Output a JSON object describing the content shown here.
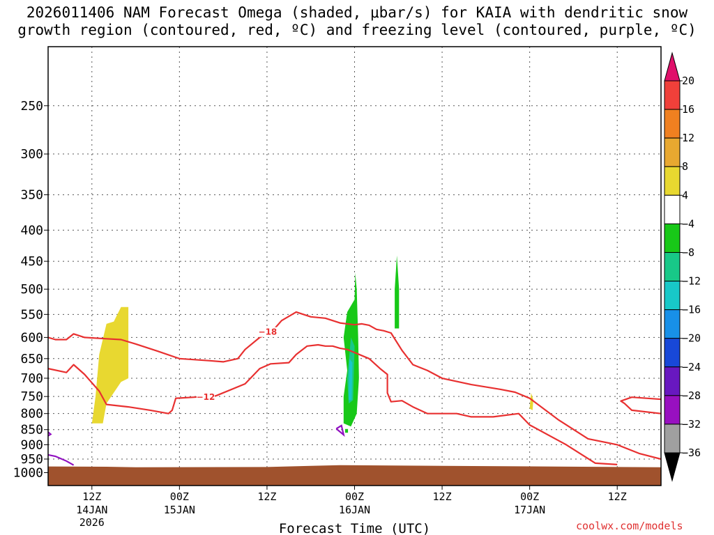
{
  "title": "2026011406 NAM Forecast Omega (shaded, μbar/s) for KAIA with dendritic snow\ngrowth region (contoured, red, ºC) and freezing level (contoured, purple, ºC)",
  "watermark": "coolwx.com/models",
  "chart_data": {
    "type": "heatmap",
    "title": "2026011406 NAM Forecast Omega (shaded, μbar/s) for KAIA with dendritic snow growth region (contoured, red, ºC) and freezing level (contoured, purple, ºC)",
    "xlabel": "Forecast Time (UTC)",
    "ylabel": "",
    "x_unit": "hours since 2026-01-14 06Z",
    "xlim": [
      0,
      84
    ],
    "y_unit": "hPa",
    "ylim": [
      1050,
      200
    ],
    "y_scale": "log",
    "grid": true,
    "yticks": [
      250,
      300,
      350,
      400,
      450,
      500,
      550,
      600,
      650,
      700,
      750,
      800,
      850,
      900,
      950,
      1000
    ],
    "xticks": [
      {
        "x": 6,
        "label": "12Z",
        "date": "14JAN",
        "year": "2026"
      },
      {
        "x": 18,
        "label": "00Z",
        "date": "15JAN",
        "year": ""
      },
      {
        "x": 30,
        "label": "12Z",
        "date": "",
        "year": ""
      },
      {
        "x": 42,
        "label": "00Z",
        "date": "16JAN",
        "year": ""
      },
      {
        "x": 54,
        "label": "12Z",
        "date": "",
        "year": ""
      },
      {
        "x": 66,
        "label": "00Z",
        "date": "17JAN",
        "year": ""
      },
      {
        "x": 78,
        "label": "12Z",
        "date": "",
        "year": ""
      }
    ],
    "colorbar": {
      "levels": [
        "20",
        "16",
        "12",
        "8",
        "4",
        "−4",
        "−8",
        "−12",
        "−16",
        "−20",
        "−24",
        "−28",
        "−32",
        "−36"
      ],
      "colors": [
        "#e0106a",
        "#f0403a",
        "#f08020",
        "#e8a830",
        "#e8d830",
        "#ffffff",
        "#18c818",
        "#18c888",
        "#18c8c8",
        "#1890e8",
        "#1848d8",
        "#6818c0",
        "#9810c0",
        "#a0a0a0",
        "#000000"
      ]
    },
    "omega_regions": [
      {
        "value_range": [
          4,
          8
        ],
        "color": "#e8d830",
        "points": [
          [
            6,
            830
          ],
          [
            6.5,
            750
          ],
          [
            7,
            640
          ],
          [
            8,
            570
          ],
          [
            9,
            565
          ],
          [
            10,
            535
          ],
          [
            11,
            535
          ],
          [
            11,
            700
          ],
          [
            10,
            710
          ],
          [
            8,
            770
          ],
          [
            7.5,
            830
          ]
        ]
      },
      {
        "value_range": [
          -8,
          -4
        ],
        "color": "#18c818",
        "points": [
          [
            40.5,
            830
          ],
          [
            40.5,
            750
          ],
          [
            41,
            680
          ],
          [
            40.5,
            600
          ],
          [
            41,
            545
          ],
          [
            42,
            520
          ],
          [
            42.1,
            470
          ],
          [
            42.3,
            500
          ],
          [
            42.5,
            600
          ],
          [
            42.6,
            700
          ],
          [
            42.3,
            800
          ],
          [
            41.5,
            840
          ]
        ]
      },
      {
        "value_range": [
          -12,
          -8
        ],
        "color": "#18c888",
        "points": [
          [
            41,
            700
          ],
          [
            41.5,
            600
          ],
          [
            42,
            620
          ],
          [
            41.8,
            760
          ],
          [
            41.2,
            770
          ]
        ]
      },
      {
        "value_range": [
          -16,
          -12
        ],
        "color": "#18c8c8",
        "points": [
          [
            41.2,
            760
          ],
          [
            41.3,
            650
          ],
          [
            41.7,
            660
          ],
          [
            41.6,
            760
          ]
        ]
      },
      {
        "value_range": [
          -8,
          -4
        ],
        "color": "#18c818",
        "points": [
          [
            47.5,
            580
          ],
          [
            47.5,
            500
          ],
          [
            47.8,
            440
          ],
          [
            48.1,
            500
          ],
          [
            48.1,
            580
          ]
        ]
      },
      {
        "value_range": [
          4,
          8
        ],
        "color": "#e8d830",
        "points": [
          [
            66,
            785
          ],
          [
            66.2,
            740
          ],
          [
            66.5,
            760
          ],
          [
            66.4,
            790
          ]
        ]
      },
      {
        "value_range": [
          -8,
          -4
        ],
        "color": "#18c818",
        "points": [
          [
            40.7,
            860
          ],
          [
            40.7,
            848
          ],
          [
            41.1,
            848
          ],
          [
            41.1,
            860
          ]
        ]
      }
    ],
    "contours": [
      {
        "name": "-12",
        "color": "#e83030",
        "label_position": [
          21.5,
          752
        ],
        "points": [
          [
            0,
            675
          ],
          [
            2.5,
            685
          ],
          [
            3.5,
            665
          ],
          [
            5,
            690
          ],
          [
            7,
            735
          ],
          [
            8,
            773
          ],
          [
            11,
            780
          ],
          [
            14,
            790
          ],
          [
            16.5,
            800
          ],
          [
            17,
            790
          ],
          [
            17.5,
            755
          ],
          [
            20,
            752
          ],
          [
            23,
            748
          ],
          [
            27,
            715
          ],
          [
            29,
            675
          ],
          [
            30.5,
            663
          ],
          [
            33,
            660
          ],
          [
            34,
            640
          ],
          [
            35.5,
            620
          ],
          [
            37,
            617
          ],
          [
            38,
            620
          ],
          [
            39,
            620
          ],
          [
            40,
            625
          ],
          [
            41,
            628
          ],
          [
            44,
            650
          ],
          [
            45.5,
            675
          ],
          [
            46.5,
            690
          ],
          [
            46.5,
            740
          ],
          [
            47,
            765
          ],
          [
            48.5,
            762
          ],
          [
            50,
            780
          ],
          [
            52,
            800
          ],
          [
            56,
            800
          ],
          [
            58,
            810
          ],
          [
            61,
            810
          ],
          [
            64.5,
            800
          ],
          [
            66,
            835
          ],
          [
            71,
            900
          ],
          [
            75,
            965
          ],
          [
            78,
            970
          ]
        ]
      },
      {
        "name": "-18",
        "color": "#e83030",
        "label_position": [
          30,
          588
        ],
        "points": [
          [
            0,
            600
          ],
          [
            1,
            605
          ],
          [
            2.5,
            605
          ],
          [
            3.5,
            592
          ],
          [
            5,
            600
          ],
          [
            8,
            603
          ],
          [
            10,
            605
          ],
          [
            12,
            615
          ],
          [
            15,
            632
          ],
          [
            18,
            650
          ],
          [
            22,
            655
          ],
          [
            24,
            658
          ],
          [
            26,
            650
          ],
          [
            27,
            628
          ],
          [
            29,
            600
          ],
          [
            30.5,
            590
          ],
          [
            32,
            563
          ],
          [
            34,
            545
          ],
          [
            36,
            555
          ],
          [
            38,
            558
          ],
          [
            40,
            568
          ],
          [
            42,
            572
          ],
          [
            43,
            570
          ],
          [
            44,
            573
          ],
          [
            45,
            582
          ],
          [
            46,
            585
          ],
          [
            47,
            590
          ],
          [
            48.5,
            630
          ],
          [
            50,
            665
          ],
          [
            52,
            680
          ],
          [
            54,
            700
          ],
          [
            58,
            717
          ],
          [
            62,
            730
          ],
          [
            64,
            738
          ],
          [
            66,
            755
          ],
          [
            70,
            820
          ],
          [
            74,
            880
          ],
          [
            78,
            900
          ],
          [
            81,
            930
          ],
          [
            84,
            950
          ]
        ]
      },
      {
        "name": "-12",
        "color": "#e83030",
        "label_position": null,
        "points": [
          [
            84,
            758
          ],
          [
            80,
            752
          ],
          [
            78.5,
            763
          ],
          [
            79,
            770
          ],
          [
            80,
            790
          ],
          [
            84,
            800
          ]
        ]
      }
    ],
    "freezing_level": [
      {
        "name": "",
        "color": "#9010c0",
        "points": [
          [
            0,
            858
          ],
          [
            0.35,
            865
          ],
          [
            0,
            870
          ]
        ]
      },
      {
        "name": "",
        "color": "#9010c0",
        "points": [
          [
            0,
            935
          ],
          [
            1,
            940
          ],
          [
            2.5,
            957
          ],
          [
            3.5,
            972
          ]
        ]
      },
      {
        "name": "",
        "color": "#9010c0",
        "points": [
          [
            39.5,
            847
          ],
          [
            40.2,
            837
          ],
          [
            40.5,
            867
          ],
          [
            39.5,
            847
          ]
        ]
      }
    ],
    "terrain": {
      "color": "#a0522d",
      "surface_pressure": [
        [
          0,
          977
        ],
        [
          8,
          978
        ],
        [
          12,
          980
        ],
        [
          30,
          979
        ],
        [
          36,
          975
        ],
        [
          40,
          972
        ],
        [
          84,
          980
        ]
      ]
    }
  }
}
